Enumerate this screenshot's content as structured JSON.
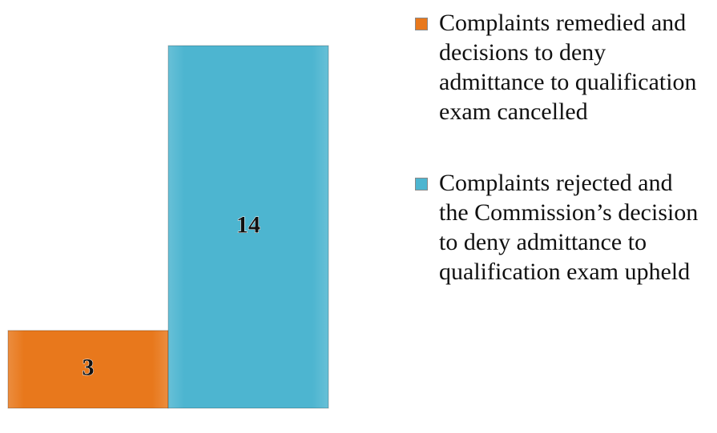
{
  "chart_data": {
    "type": "bar",
    "series": [
      {
        "name": "Complaints remedied and decisions to deny admittance to qualification exam cancelled",
        "color": "#e8781c",
        "values": [
          3
        ]
      },
      {
        "name": "Complaints rejected and the Commission’s decision to deny admittance to qualification exam upheld",
        "color": "#4db5d0",
        "values": [
          14
        ]
      }
    ],
    "legend": "right"
  }
}
